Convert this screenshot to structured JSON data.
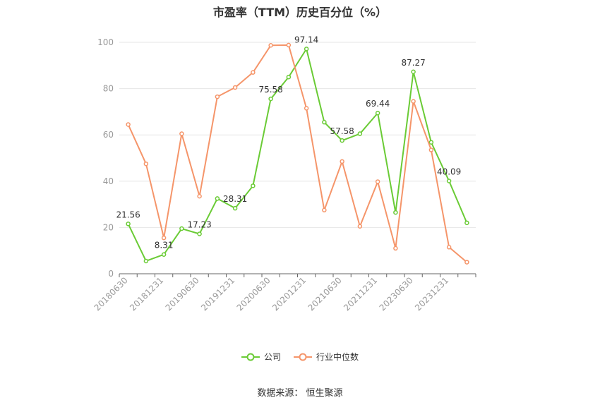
{
  "chart_data": {
    "type": "line",
    "title": "市盈率（TTM）历史百分位（%）",
    "xlabel": "",
    "ylabel": "",
    "ylim": [
      0,
      100
    ],
    "yticks": [
      0,
      20,
      40,
      60,
      80,
      100
    ],
    "x": [
      "20180630",
      "20180930",
      "20181231",
      "20190331",
      "20190630",
      "20190930",
      "20191231",
      "20200331",
      "20200630",
      "20200930",
      "20201231",
      "20210331",
      "20210630",
      "20210930",
      "20211231",
      "20220331",
      "20230630",
      "20230930",
      "20231231",
      "20240331"
    ],
    "xtick_labels": [
      "20180630",
      "20181231",
      "20190630",
      "20191231",
      "20200630",
      "20201231",
      "20210630",
      "20211231",
      "20230630",
      "20231231"
    ],
    "series": [
      {
        "name": "公司",
        "color": "#6acb35",
        "values": [
          21.56,
          5.5,
          8.31,
          19.5,
          17.23,
          32.5,
          28.31,
          38.0,
          75.58,
          85.0,
          97.14,
          65.5,
          57.58,
          60.5,
          69.44,
          26.5,
          87.27,
          56.8,
          40.09,
          22.0
        ],
        "labels": {
          "0": "21.56",
          "2": "8.31",
          "4": "17.23",
          "6": "28.31",
          "8": "75.58",
          "10": "97.14",
          "12": "57.58",
          "14": "69.44",
          "16": "87.27",
          "18": "40.09"
        }
      },
      {
        "name": "行业中位数",
        "color": "#f5956a",
        "values": [
          64.5,
          47.5,
          15.5,
          60.5,
          33.5,
          76.5,
          80.5,
          87.0,
          98.7,
          98.8,
          71.5,
          27.5,
          48.5,
          20.5,
          39.8,
          11.0,
          74.5,
          53.5,
          11.5,
          5.0
        ]
      }
    ],
    "grid": true,
    "legend_position": "bottom"
  },
  "source_text": "数据来源：  恒生聚源"
}
